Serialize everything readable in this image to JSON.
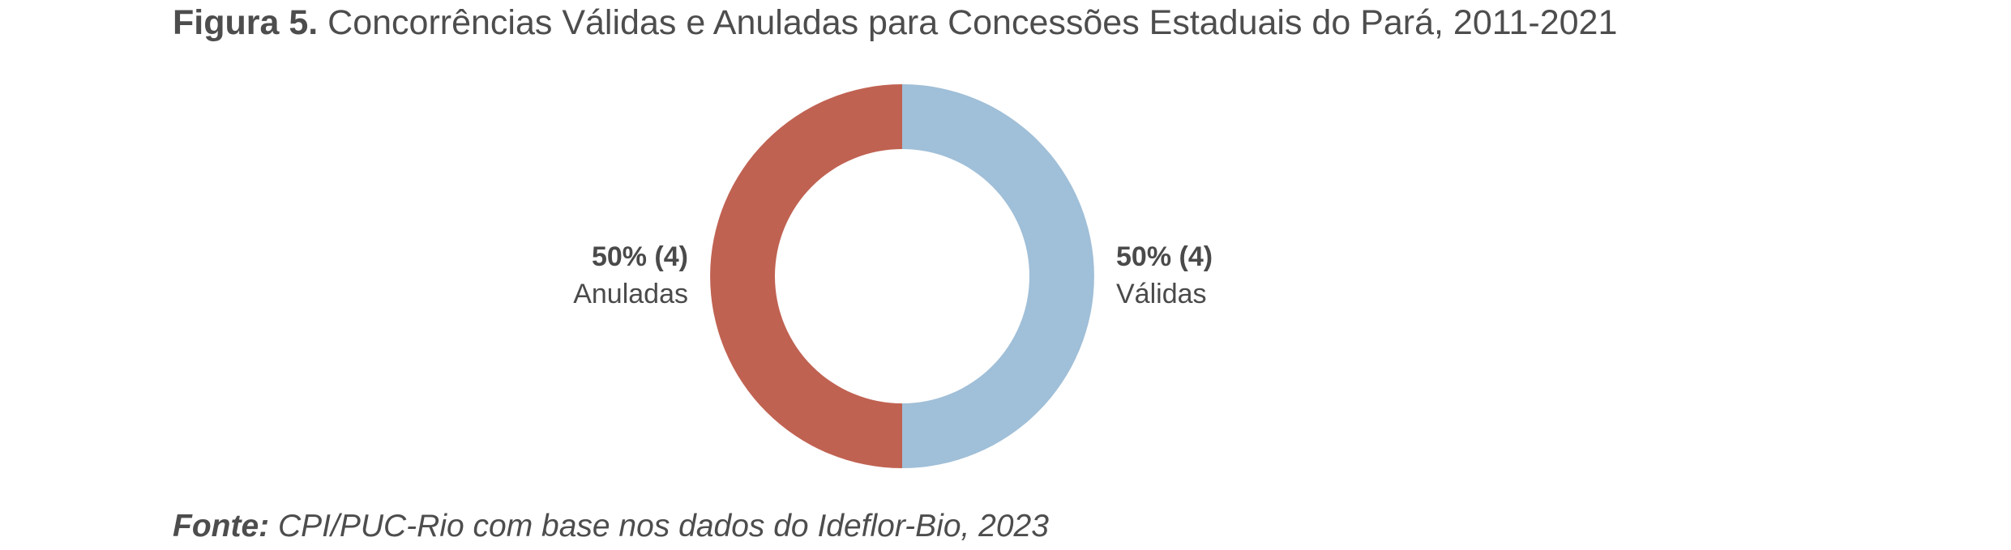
{
  "figure": {
    "title_lead": "Figura 5.",
    "title_text": "Concorrências Válidas e Anuladas para Concessões Estaduais do Pará, 2011-2021",
    "source_lead": "Fonte:",
    "source_text": "CPI/PUC-Rio com base nos dados do Ideflor-Bio, 2023"
  },
  "chart_data": {
    "type": "pie",
    "subtype": "donut",
    "title": "Concorrências Válidas e Anuladas para Concessões Estaduais do Pará, 2011-2021",
    "legend": "none",
    "slices": [
      {
        "label": "Válidas",
        "value": 4,
        "percent": 50,
        "display": "50% (4)",
        "color": "#a0bfd8"
      },
      {
        "label": "Anuladas",
        "value": 4,
        "percent": 50,
        "display": "50% (4)",
        "color": "#c06252"
      }
    ]
  }
}
